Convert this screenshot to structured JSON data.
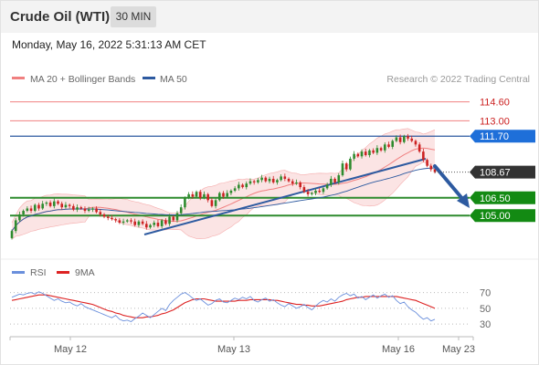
{
  "header": {
    "title": "Crude Oil (WTI)",
    "interval": "30 MIN"
  },
  "timestamp": "Monday, May 16, 2022 5:31:13 AM CET",
  "credit": "Research © 2022 Trading Central",
  "colors": {
    "price_line": "#2d5aa0",
    "bollinger": "#f08080",
    "bollinger_fill": "#fadbdb",
    "resistance": "#f08080",
    "support": "#2e8b2e",
    "arrow": "#2d5aa0",
    "candle_up": "#2e8b2e",
    "candle_down": "#cc2222",
    "rsi": "#6a8fdc",
    "rsi_ma": "#dd2222"
  },
  "chart_data": [
    {
      "type": "candlestick",
      "legend": [
        {
          "name": "MA 20 + Bollinger Bands",
          "color": "#f08080"
        },
        {
          "name": "MA 50",
          "color": "#2d5aa0"
        }
      ],
      "legend_position": "top-left",
      "x_ticks": [
        "May 12",
        "May 13",
        "May 16",
        "May 23"
      ],
      "ylim": [
        102.4,
        115.8
      ],
      "grid": false,
      "current_price": "108.67",
      "levels": [
        {
          "value": 114.6,
          "label": "114.60",
          "kind": "resistance"
        },
        {
          "value": 113.0,
          "label": "113.00",
          "kind": "resistance"
        },
        {
          "value": 111.7,
          "label": "111.70",
          "kind": "pivot"
        },
        {
          "value": 106.5,
          "label": "106.50",
          "kind": "support"
        },
        {
          "value": 105.0,
          "label": "105.00",
          "kind": "support"
        }
      ],
      "close": [
        103.7,
        104.6,
        105.1,
        105.4,
        105.6,
        105.4,
        105.9,
        105.6,
        106.0,
        106.1,
        105.8,
        106.2,
        106.0,
        105.7,
        105.9,
        105.8,
        105.5,
        105.7,
        105.6,
        105.4,
        105.5,
        105.6,
        105.3,
        105.1,
        104.9,
        104.8,
        104.7,
        104.6,
        104.4,
        104.5,
        104.6,
        104.5,
        104.2,
        104.5,
        104.3,
        104.0,
        104.2,
        104.4,
        104.1,
        104.6,
        104.3,
        104.9,
        104.6,
        105.2,
        105.7,
        106.5,
        106.8,
        106.6,
        107.0,
        106.5,
        106.8,
        106.3,
        105.8,
        106.3,
        106.9,
        106.6,
        106.9,
        107.1,
        107.3,
        107.6,
        107.4,
        107.7,
        107.9,
        107.8,
        108.0,
        108.2,
        107.9,
        108.1,
        107.8,
        108.0,
        108.3,
        108.1,
        107.9,
        107.7,
        107.8,
        107.4,
        107.0,
        106.8,
        106.9,
        107.1,
        107.0,
        107.3,
        107.6,
        108.1,
        107.8,
        108.4,
        109.4,
        108.9,
        109.8,
        110.2,
        110.0,
        110.4,
        110.1,
        110.5,
        110.3,
        110.7,
        110.5,
        111.0,
        110.8,
        111.3,
        111.6,
        111.2,
        111.7,
        111.5,
        111.3,
        111.0,
        110.4,
        109.7,
        109.2,
        108.9,
        108.67
      ],
      "rsi_panel": {
        "legend": [
          {
            "name": "RSI",
            "color": "#6a8fdc"
          },
          {
            "name": "9MA",
            "color": "#dd2222"
          }
        ],
        "ylim": [
          22,
          80
        ],
        "y_ticks": [
          "70",
          "50",
          "30"
        ],
        "rsi": [
          64,
          66,
          68,
          67,
          69,
          70,
          68,
          71,
          69,
          66,
          63,
          60,
          62,
          59,
          57,
          58,
          55,
          53,
          56,
          52,
          50,
          48,
          46,
          44,
          42,
          40,
          38,
          41,
          36,
          34,
          35,
          33,
          37,
          40,
          44,
          41,
          38,
          42,
          46,
          50,
          47,
          55,
          60,
          64,
          68,
          70,
          67,
          63,
          60,
          62,
          58,
          54,
          56,
          60,
          62,
          58,
          57,
          60,
          63,
          61,
          64,
          62,
          65,
          60,
          58,
          61,
          63,
          59,
          61,
          57,
          54,
          52,
          56,
          53,
          50,
          52,
          55,
          51,
          48,
          53,
          57,
          60,
          58,
          62,
          59,
          64,
          67,
          69,
          66,
          68,
          63,
          65,
          61,
          64,
          67,
          63,
          66,
          68,
          64,
          66,
          60,
          56,
          58,
          52,
          48,
          45,
          40,
          36,
          38,
          34,
          36
        ],
        "ma": [
          60,
          61,
          62,
          63,
          64,
          65,
          66,
          67,
          67,
          67,
          66,
          65,
          64,
          63,
          62,
          61,
          60,
          59,
          58,
          57,
          56,
          55,
          53,
          51,
          49,
          47,
          46,
          44,
          43,
          41,
          40,
          39,
          38,
          38,
          38,
          39,
          39,
          40,
          41,
          43,
          44,
          46,
          48,
          51,
          54,
          57,
          59,
          61,
          62,
          62,
          62,
          61,
          60,
          59,
          59,
          59,
          59,
          59,
          59,
          60,
          60,
          60,
          61,
          61,
          61,
          61,
          61,
          61,
          60,
          60,
          59,
          58,
          57,
          56,
          55,
          55,
          54,
          54,
          53,
          53,
          53,
          54,
          55,
          56,
          57,
          58,
          59,
          61,
          62,
          63,
          64,
          64,
          65,
          65,
          65,
          65,
          65,
          65,
          65,
          65,
          65,
          64,
          63,
          62,
          61,
          60,
          58,
          56,
          54,
          52,
          50
        ]
      }
    }
  ]
}
